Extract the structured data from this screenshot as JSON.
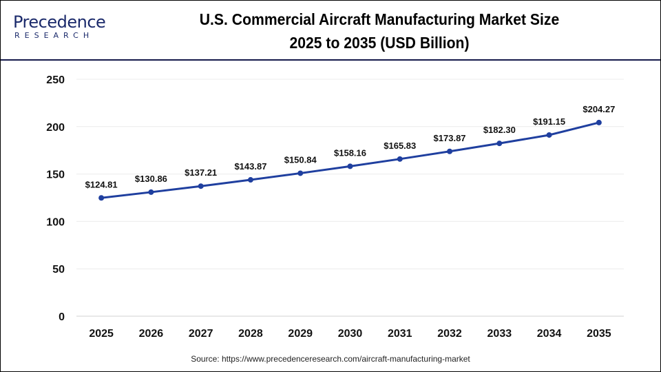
{
  "logo": {
    "line1": "Precedence",
    "line2": "RESEARCH"
  },
  "chart_data": {
    "type": "line",
    "title": "U.S. Commercial Aircraft Manufacturing Market Size 2025 to 2035 (USD Billion)",
    "title_lines": [
      "U.S. Commercial Aircraft Manufacturing Market Size",
      "2025 to 2035 (USD Billion)"
    ],
    "categories": [
      "2025",
      "2026",
      "2027",
      "2028",
      "2029",
      "2030",
      "2031",
      "2032",
      "2033",
      "2034",
      "2035"
    ],
    "values": [
      124.81,
      130.86,
      137.21,
      143.87,
      150.84,
      158.16,
      165.83,
      173.87,
      182.3,
      191.15,
      204.27
    ],
    "data_labels": [
      "$124.81",
      "$130.86",
      "$137.21",
      "$143.87",
      "$150.84",
      "$158.16",
      "$165.83",
      "$173.87",
      "$182.30",
      "$191.15",
      "$204.27"
    ],
    "yticks": [
      "0",
      "50",
      "100",
      "150",
      "200",
      "250"
    ],
    "ylim": [
      0,
      250
    ],
    "grid": true,
    "line_color": "#1f3f9f",
    "xlabel": "",
    "ylabel": ""
  },
  "source": "Source: https://www.precedenceresearch.com/aircraft-manufacturing-market"
}
